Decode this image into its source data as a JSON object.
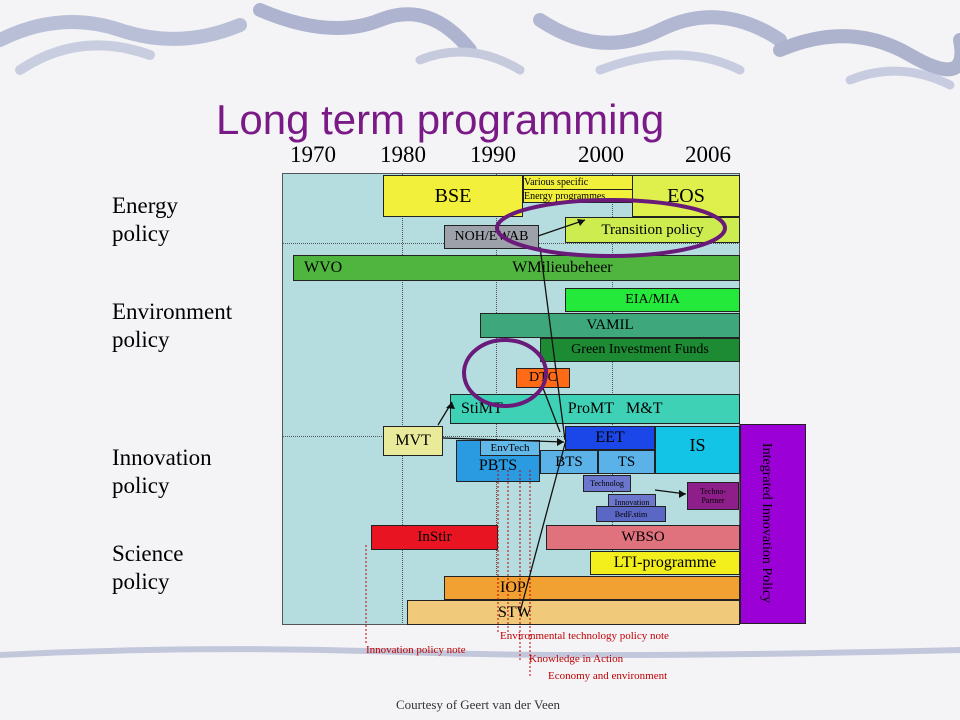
{
  "slide": {
    "title": "Long term programming",
    "courtesy": "Courtesy of Geert van der Veen",
    "colors": {
      "title": "#7a1a86",
      "panel": "#b5dde0",
      "circle": "#6a1a78",
      "notes": "#c00000"
    }
  },
  "years": [
    "1970",
    "1980",
    "1990",
    "2000",
    "2006"
  ],
  "categories": {
    "energy": "Energy\npolicy",
    "environment": "Environment\npolicy",
    "innovation": "Innovation\npolicy",
    "science": "Science\npolicy"
  },
  "programmes": {
    "bse": "BSE",
    "various_specific": "Various specific",
    "energy_programmes": "Energy programmes",
    "eos": "EOS",
    "noh_ewab": "NOH/EWAB",
    "transition_policy": "Transition policy",
    "wvo": "WVO",
    "wm": "WM",
    "milieubeheer": "ilieubeheer",
    "eia_mia": "EIA/MIA",
    "vamil": "VAMIL",
    "green_investment": "Green Investment Funds",
    "dtc": "DTC",
    "stimt": "StiMT",
    "promt": "ProMT",
    "mt": "M&T",
    "mvt": "MVT",
    "envtech": "EnvTech",
    "pbts": "PBTS",
    "eet": "EET",
    "is": "IS",
    "bts": "BTS",
    "ts": "TS",
    "technolog": "Technolog",
    "techno_partner": "Techno-\nPartner",
    "innovation_small": "Innovation",
    "bedr": "BedF.stim",
    "instir": "InStir",
    "wbso": "WBSO",
    "lti": "LTI-programme",
    "iop": "IOP",
    "stw": "STW",
    "integrated": "Integrated Innovation\nPolicy"
  },
  "notes": {
    "environmental_tech": "Environmental technology policy note",
    "innovation_note": "Innovation policy note",
    "knowledge": "Knowledge in Action",
    "economy": "Economy and environment"
  }
}
